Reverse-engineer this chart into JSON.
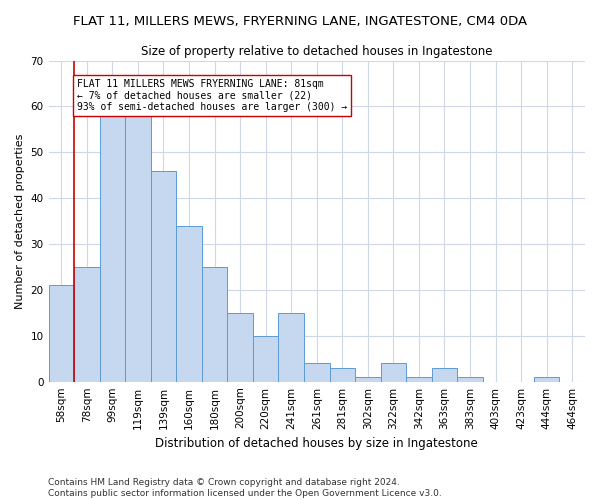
{
  "title": "FLAT 11, MILLERS MEWS, FRYERNING LANE, INGATESTONE, CM4 0DA",
  "subtitle": "Size of property relative to detached houses in Ingatestone",
  "xlabel": "Distribution of detached houses by size in Ingatestone",
  "ylabel": "Number of detached properties",
  "categories": [
    "58sqm",
    "78sqm",
    "99sqm",
    "119sqm",
    "139sqm",
    "160sqm",
    "180sqm",
    "200sqm",
    "220sqm",
    "241sqm",
    "261sqm",
    "281sqm",
    "302sqm",
    "322sqm",
    "342sqm",
    "363sqm",
    "383sqm",
    "403sqm",
    "423sqm",
    "444sqm",
    "464sqm"
  ],
  "values": [
    21,
    25,
    59,
    59,
    46,
    34,
    25,
    15,
    10,
    15,
    4,
    3,
    1,
    4,
    1,
    3,
    1,
    0,
    0,
    1,
    0
  ],
  "bar_color": "#c5d8f0",
  "bar_edge_color": "#5b9bd5",
  "vline_x": 0.5,
  "vline_color": "#cc0000",
  "annotation_text": "FLAT 11 MILLERS MEWS FRYERNING LANE: 81sqm\n← 7% of detached houses are smaller (22)\n93% of semi-detached houses are larger (300) →",
  "annotation_box_color": "#ffffff",
  "annotation_box_edge": "#cc0000",
  "ylim": [
    0,
    70
  ],
  "yticks": [
    0,
    10,
    20,
    30,
    40,
    50,
    60,
    70
  ],
  "footer": "Contains HM Land Registry data © Crown copyright and database right 2024.\nContains public sector information licensed under the Open Government Licence v3.0.",
  "bg_color": "#ffffff",
  "grid_color": "#d0d8e8",
  "annotation_fontsize": 7.0,
  "title_fontsize": 9.5,
  "subtitle_fontsize": 8.5,
  "xlabel_fontsize": 8.5,
  "ylabel_fontsize": 8.0,
  "tick_fontsize": 7.5,
  "footer_fontsize": 6.5
}
